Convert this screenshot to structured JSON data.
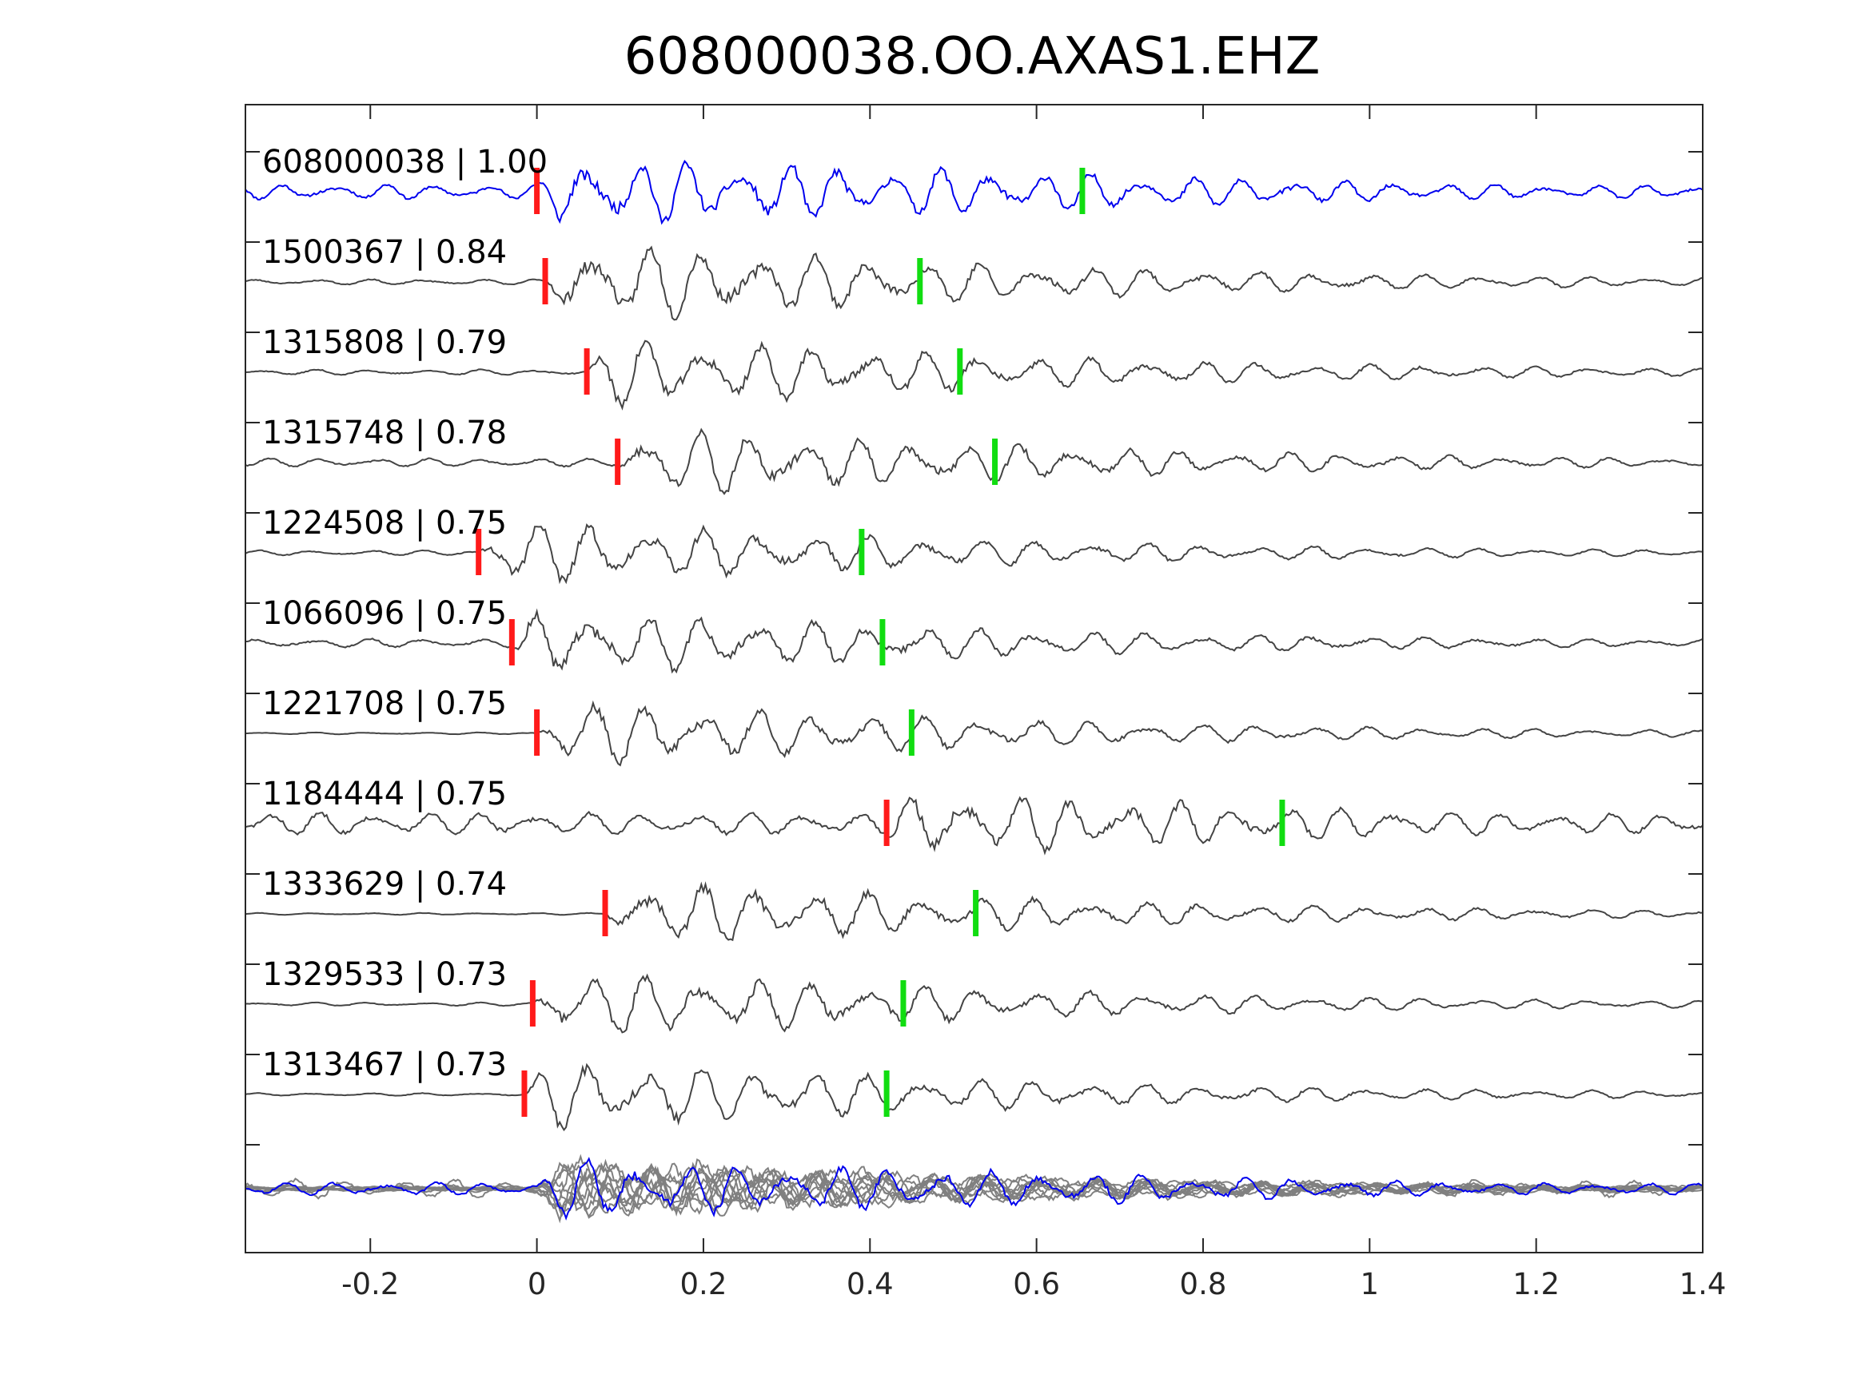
{
  "chart_data": {
    "type": "line",
    "title": "608000038.OO.AXAS1.EHZ",
    "xlabel": "",
    "ylabel": "",
    "xlim": [
      -0.35,
      1.4
    ],
    "xticks": [
      -0.2,
      0,
      0.2,
      0.4,
      0.6,
      0.8,
      1,
      1.2,
      1.4
    ],
    "xtick_labels": [
      "-0.2",
      "0",
      "0.2",
      "0.4",
      "0.6",
      "0.8",
      "1",
      "1.2",
      "1.4"
    ],
    "grid": false,
    "legend": "none",
    "colors": {
      "reference_trace": "#0000ee",
      "trace": "#444444",
      "stack_trace": "#808080",
      "p_pick": "#ff1a1a",
      "s_pick": "#11dd11"
    },
    "series": [
      {
        "name": "608000038 | 1.00",
        "p_pick": 0.0,
        "s_pick": 0.655,
        "amp": 0.85,
        "noise": 0.22,
        "freq": 16.5,
        "seed": 11,
        "color": "reference_trace"
      },
      {
        "name": "1500367 | 0.84",
        "p_pick": 0.01,
        "s_pick": 0.46,
        "amp": 1.0,
        "noise": 0.07,
        "freq": 15,
        "seed": 23,
        "color": "trace"
      },
      {
        "name": "1315808 | 0.79",
        "p_pick": 0.06,
        "s_pick": 0.508,
        "amp": 0.85,
        "noise": 0.08,
        "freq": 15,
        "seed": 37,
        "color": "trace"
      },
      {
        "name": "1315748 | 0.78",
        "p_pick": 0.097,
        "s_pick": 0.55,
        "amp": 0.85,
        "noise": 0.12,
        "freq": 15.5,
        "seed": 41,
        "color": "trace"
      },
      {
        "name": "1224508 | 0.75",
        "p_pick": -0.07,
        "s_pick": 0.39,
        "amp": 0.8,
        "noise": 0.08,
        "freq": 15,
        "seed": 53,
        "color": "trace"
      },
      {
        "name": "1066096 | 0.75",
        "p_pick": -0.03,
        "s_pick": 0.415,
        "amp": 0.85,
        "noise": 0.13,
        "freq": 15,
        "seed": 67,
        "color": "trace"
      },
      {
        "name": "1221708 | 0.75",
        "p_pick": 0.0,
        "s_pick": 0.45,
        "amp": 0.8,
        "noise": 0.03,
        "freq": 15,
        "seed": 71,
        "color": "trace"
      },
      {
        "name": "1184444 | 0.75",
        "p_pick": 0.42,
        "s_pick": 0.895,
        "amp": 0.8,
        "noise": 0.35,
        "freq": 15.5,
        "seed": 83,
        "color": "trace"
      },
      {
        "name": "1333629 | 0.74",
        "p_pick": 0.082,
        "s_pick": 0.527,
        "amp": 0.8,
        "noise": 0.03,
        "freq": 15,
        "seed": 97,
        "color": "trace"
      },
      {
        "name": "1329533 | 0.73",
        "p_pick": -0.005,
        "s_pick": 0.44,
        "amp": 0.85,
        "noise": 0.05,
        "freq": 15,
        "seed": 103,
        "color": "trace"
      },
      {
        "name": "1313467 | 0.73",
        "p_pick": -0.015,
        "s_pick": 0.42,
        "amp": 0.85,
        "noise": 0.04,
        "freq": 15,
        "seed": 109,
        "color": "trace"
      }
    ],
    "stack": {
      "description_visible": false,
      "members": 11,
      "aligned_on": "p_pick"
    }
  }
}
